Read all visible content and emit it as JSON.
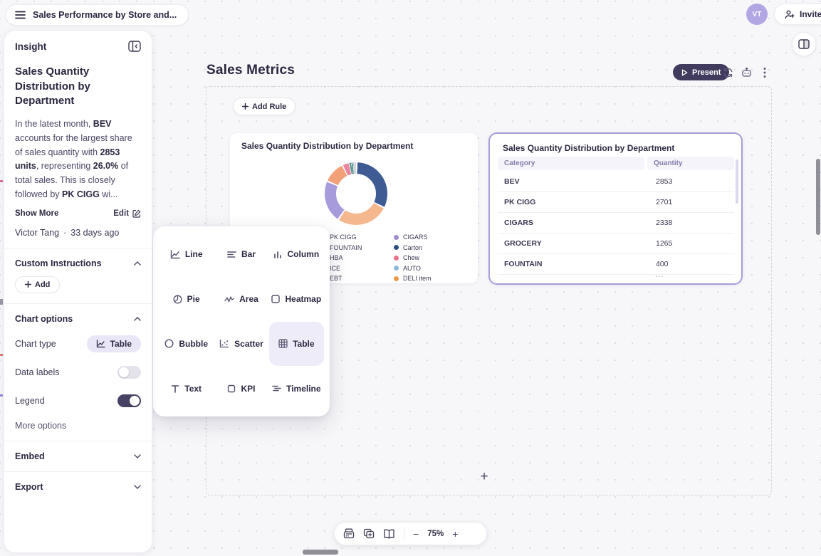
{
  "colors": {
    "accent": "#7b6fd0",
    "present_bg": "#413b5e",
    "selected_border": "#a89ddb",
    "toggle_on": "#474163",
    "avatar_bg": "#b2a7e3"
  },
  "topbar": {
    "title": "Sales Performance by Store and...",
    "avatar_initials": "VT",
    "invite_label": "Invite"
  },
  "insight_panel": {
    "header": "Insight",
    "title": "Sales Quantity Distribution by Department",
    "body": {
      "t1": "In the latest month, ",
      "b1": "BEV",
      "t2": " accounts for the largest share of sales quantity with ",
      "b2": "2853 units",
      "t3": ", representing ",
      "b3": "26.0%",
      "t4": " of total sales. This is closely followed by ",
      "b4": "PK CIGG",
      "t5": " wi..."
    },
    "show_more_label": "Show More",
    "edit_label": "Edit",
    "author": "Victor Tang",
    "author_sep": "·",
    "author_meta": "33 days ago",
    "custom_instructions": {
      "label": "Custom Instructions",
      "add_label": "Add"
    },
    "chart_options": {
      "label": "Chart options",
      "chart_type_label": "Chart type",
      "chart_type_value": "Table",
      "data_labels_label": "Data labels",
      "data_labels_on": false,
      "legend_label": "Legend",
      "legend_on": true,
      "more_options_label": "More options"
    },
    "embed_label": "Embed",
    "export_label": "Export"
  },
  "canvas": {
    "title": "Sales Metrics",
    "present_label": "Present",
    "add_rule_label": "Add Rule",
    "add_widget_label": "+",
    "header_icons": [
      "refresh-icon",
      "bot-icon",
      "more-vertical-icon"
    ]
  },
  "donut_card": {
    "title": "Sales Quantity Distribution by Department",
    "legend_left": [
      {
        "label": "PK CIGG",
        "color": "#f2a36b"
      },
      {
        "label": "FOUNTAIN",
        "color": "#e8657a"
      },
      {
        "label": "HBA",
        "color": "#9fd0ca"
      },
      {
        "label": "ICE",
        "color": "#3e8f7e"
      },
      {
        "label": "EBT",
        "color": "#d94f5c"
      }
    ],
    "legend_right": [
      {
        "label": "CIGARS",
        "color": "#a08cd0"
      },
      {
        "label": "Carton",
        "color": "#2d4f7c"
      },
      {
        "label": "Chew",
        "color": "#e8738a"
      },
      {
        "label": "AUTO",
        "color": "#8cb8d8"
      },
      {
        "label": "DELI item",
        "color": "#f0954a"
      }
    ]
  },
  "table_card": {
    "title": "Sales Quantity Distribution by Department",
    "columns": [
      "Category",
      "Quantity"
    ],
    "rows": [
      [
        "BEV",
        "2853"
      ],
      [
        "PK CIGG",
        "2701"
      ],
      [
        "CIGARS",
        "2338"
      ],
      [
        "GROCERY",
        "1265"
      ],
      [
        "FOUNTAIN",
        "400"
      ]
    ],
    "ellipsis": "..."
  },
  "chart_type_menu": {
    "items": [
      {
        "label": "Line",
        "icon": "line-chart-icon",
        "selected": false
      },
      {
        "label": "Bar",
        "icon": "bar-chart-icon",
        "selected": false
      },
      {
        "label": "Column",
        "icon": "column-chart-icon",
        "selected": false
      },
      {
        "label": "Pie",
        "icon": "pie-chart-icon",
        "selected": false
      },
      {
        "label": "Area",
        "icon": "area-chart-icon",
        "selected": false
      },
      {
        "label": "Heatmap",
        "icon": "heatmap-icon",
        "selected": false
      },
      {
        "label": "Bubble",
        "icon": "bubble-chart-icon",
        "selected": false
      },
      {
        "label": "Scatter",
        "icon": "scatter-chart-icon",
        "selected": false
      },
      {
        "label": "Table",
        "icon": "table-icon",
        "selected": true
      },
      {
        "label": "Text",
        "icon": "text-icon",
        "selected": false
      },
      {
        "label": "KPI",
        "icon": "kpi-icon",
        "selected": false
      },
      {
        "label": "Timeline",
        "icon": "timeline-icon",
        "selected": false
      }
    ]
  },
  "bottom_toolbar": {
    "icons": [
      "print-icon",
      "duplicate-page-icon",
      "book-icon"
    ],
    "zoom_out": "−",
    "zoom_level": "75%",
    "zoom_in": "+"
  },
  "chart_data": [
    {
      "type": "pie",
      "title": "Sales Quantity Distribution by Department",
      "subtype": "donut",
      "categories": [
        "BEV",
        "PK CIGG",
        "CIGARS",
        "GROCERY",
        "FOUNTAIN",
        "HBA",
        "ICE",
        "EBT",
        "CIGARS (legend)",
        "Carton",
        "Chew",
        "AUTO",
        "DELI item"
      ],
      "values_known": {
        "BEV": 2853,
        "PK CIGG": 2701,
        "CIGARS": 2338,
        "GROCERY": 1265,
        "FOUNTAIN": 400
      },
      "values_estimated_small_slices": {
        "HBA": 120,
        "ICE": 90,
        "EBT": 70,
        "Carton": 60,
        "Chew": 50,
        "AUTO": 40,
        "DELI item": 30
      },
      "segment_percent_estimates": {
        "BEV": 31,
        "PK CIGG": 26.5,
        "CIGARS": 21,
        "GROCERY": 10.5,
        "FOUNTAIN": 3,
        "others_combined": 8
      },
      "legend_position": "bottom-two-columns",
      "segment_colors": [
        "#3e5b94",
        "#f5b78e",
        "#a89bdc",
        "#f2a077",
        "#e9849c",
        "#4f918c",
        "#2e6e74",
        "#a5d6cf",
        "#e3aebe",
        "#9fb6c6"
      ]
    },
    {
      "type": "table",
      "title": "Sales Quantity Distribution by Department",
      "columns": [
        "Category",
        "Quantity"
      ],
      "rows": [
        [
          "BEV",
          2853
        ],
        [
          "PK CIGG",
          2701
        ],
        [
          "CIGARS",
          2338
        ],
        [
          "GROCERY",
          1265
        ],
        [
          "FOUNTAIN",
          400
        ]
      ],
      "truncated": true
    }
  ]
}
